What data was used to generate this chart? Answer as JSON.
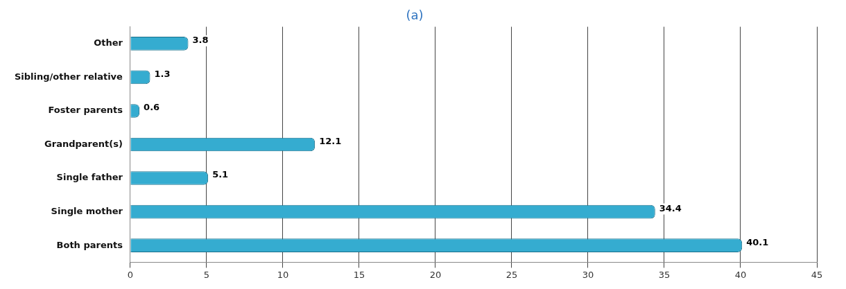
{
  "chart_data": {
    "type": "bar",
    "orientation": "horizontal",
    "title": "(a)",
    "categories": [
      "Other",
      "Sibling/other relative",
      "Foster parents",
      "Grandparent(s)",
      "Single father",
      "Single mother",
      "Both parents"
    ],
    "values": [
      3.8,
      1.3,
      0.6,
      12.1,
      5.1,
      34.4,
      40.1
    ],
    "color": "#35acd0",
    "xlim": [
      0,
      45
    ],
    "xticks": [
      0,
      5,
      10,
      15,
      20,
      25,
      30,
      35,
      40,
      45
    ],
    "grid": "x",
    "data_labels": true,
    "legend": false
  }
}
